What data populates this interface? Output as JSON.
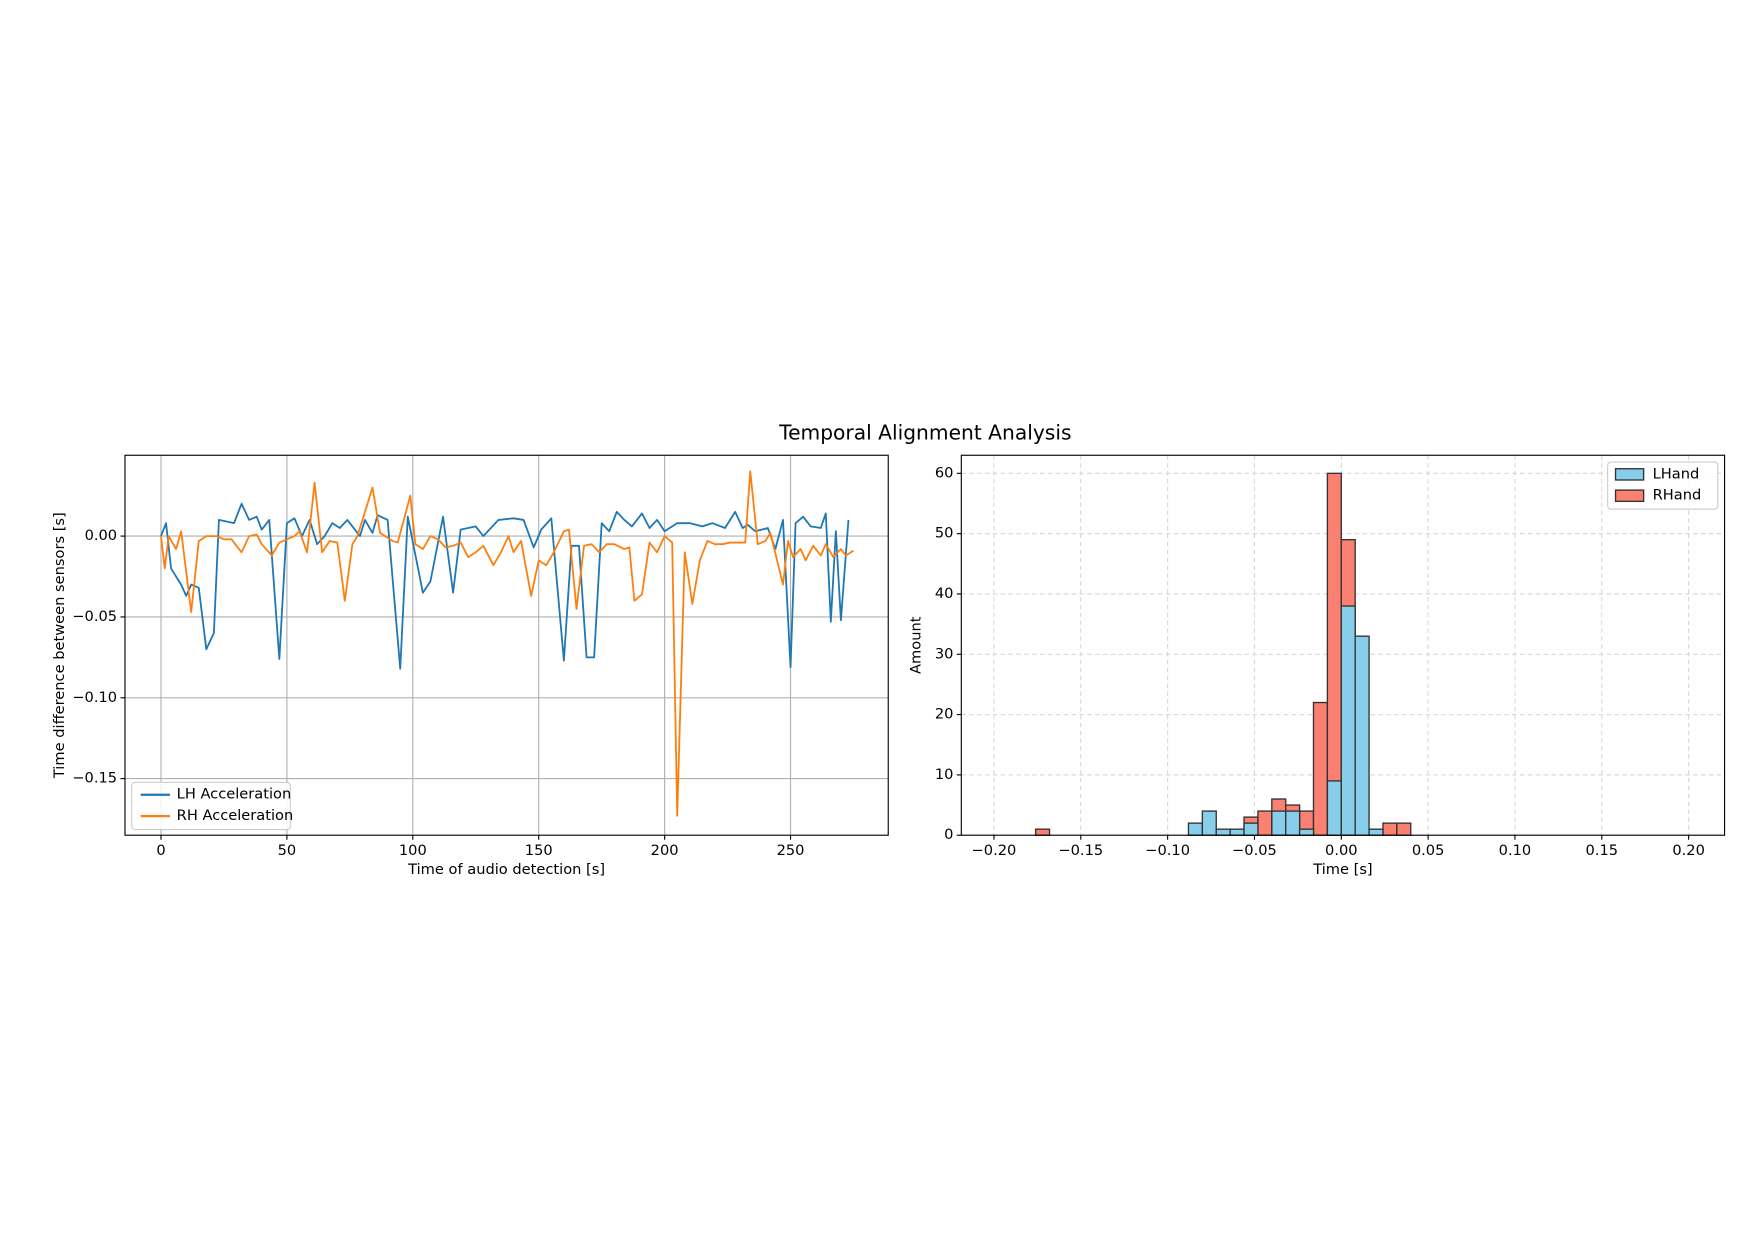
{
  "title": "Temporal Alignment Analysis",
  "chart_data": [
    {
      "type": "line",
      "xlabel": "Time of audio detection [s]",
      "ylabel": "Time difference between sensors [s]",
      "xlim": [
        -14.3,
        288.8
      ],
      "ylim": [
        -0.185,
        0.05
      ],
      "xticks": [
        0,
        50,
        100,
        150,
        200,
        250
      ],
      "yticks": [
        {
          "value": -0.15,
          "label": "−0.15"
        },
        {
          "value": -0.1,
          "label": "−0.10"
        },
        {
          "value": -0.05,
          "label": "−0.05"
        },
        {
          "value": 0,
          "label": "0.00"
        }
      ],
      "grid": true,
      "grid_linestyle": "solid",
      "legend": "lower left",
      "series": [
        {
          "name": "LH Acceleration",
          "color": "#1f77b4",
          "x": [
            0,
            2,
            4,
            8,
            10,
            12,
            15,
            18,
            21,
            23,
            29,
            32,
            35,
            38,
            40,
            43,
            47,
            50,
            53,
            56,
            59,
            62,
            65,
            68,
            71,
            74,
            79,
            81,
            84,
            86,
            90,
            95,
            98,
            104,
            107,
            112,
            116,
            119,
            125,
            128,
            134,
            140,
            144,
            148,
            151,
            155,
            160,
            163,
            166,
            169,
            172,
            175,
            178,
            181,
            184,
            187,
            191,
            194,
            197,
            200,
            205,
            210,
            215,
            219,
            224,
            228,
            231,
            233,
            236,
            241,
            244,
            247,
            250,
            252,
            255,
            258,
            262,
            264,
            266,
            268,
            270,
            273
          ],
          "values": [
            0,
            0.008,
            -0.02,
            -0.03,
            -0.037,
            -0.03,
            -0.032,
            -0.07,
            -0.06,
            0.01,
            0.008,
            0.02,
            0.01,
            0.012,
            0.004,
            0.01,
            -0.076,
            0.008,
            0.011,
            0,
            0.01,
            -0.005,
            0,
            0.008,
            0.005,
            0.01,
            0,
            0.01,
            0.002,
            0.013,
            0.01,
            -0.082,
            0.012,
            -0.035,
            -0.028,
            0.012,
            -0.035,
            0.004,
            0.006,
            0,
            0.01,
            0.011,
            0.01,
            -0.007,
            0.004,
            0.011,
            -0.077,
            -0.006,
            -0.006,
            -0.075,
            -0.075,
            0.008,
            0.003,
            0.015,
            0.01,
            0.006,
            0.014,
            0.005,
            0.01,
            0.003,
            0.008,
            0.008,
            0.006,
            0.008,
            0.005,
            0.015,
            0.005,
            0.007,
            0.003,
            0.005,
            -0.008,
            0.01,
            -0.081,
            0.008,
            0.012,
            0.006,
            0.005,
            0.014,
            -0.053,
            0.003,
            -0.052,
            0.01
          ]
        },
        {
          "name": "RH Acceleration",
          "color": "#ff7f0e",
          "x": [
            0,
            1.5,
            3,
            6,
            8,
            12,
            15,
            18,
            22,
            25,
            28,
            32,
            35,
            38,
            40,
            44,
            47,
            50,
            53,
            55,
            58,
            61,
            64,
            67,
            70,
            73,
            76,
            78,
            84,
            87,
            89,
            92,
            94,
            99,
            101,
            104,
            107,
            110,
            113,
            116,
            119,
            122,
            125,
            128,
            132,
            135,
            138,
            140,
            143,
            147,
            150,
            153,
            156,
            160,
            162,
            165,
            168,
            171,
            174,
            177,
            180,
            184,
            186,
            188,
            191,
            194,
            197,
            200,
            203,
            205,
            208,
            211,
            214,
            217,
            220,
            223,
            226,
            229,
            232,
            234,
            237,
            240,
            242,
            247,
            249,
            251,
            254,
            256,
            259,
            262,
            264,
            267,
            270,
            272,
            275
          ],
          "values": [
            0,
            -0.02,
            0,
            -0.008,
            0.003,
            -0.047,
            -0.003,
            0,
            0,
            -0.002,
            -0.002,
            -0.01,
            0,
            0.001,
            -0.005,
            -0.012,
            -0.004,
            -0.002,
            0,
            0.003,
            -0.01,
            0.033,
            -0.01,
            -0.003,
            -0.004,
            -0.04,
            -0.005,
            0,
            0.03,
            0.002,
            0,
            -0.003,
            -0.004,
            0.025,
            -0.005,
            -0.008,
            0,
            -0.002,
            -0.007,
            -0.006,
            -0.004,
            -0.013,
            -0.01,
            -0.006,
            -0.018,
            -0.01,
            0,
            -0.01,
            -0.003,
            -0.037,
            -0.015,
            -0.018,
            -0.01,
            0.003,
            0.004,
            -0.045,
            -0.006,
            -0.005,
            -0.01,
            -0.005,
            -0.005,
            -0.008,
            -0.007,
            -0.04,
            -0.036,
            -0.004,
            -0.01,
            0,
            -0.004,
            -0.173,
            -0.01,
            -0.042,
            -0.015,
            -0.003,
            -0.005,
            -0.005,
            -0.004,
            -0.004,
            -0.004,
            0.04,
            -0.005,
            -0.003,
            0.002,
            -0.03,
            -0.003,
            -0.013,
            -0.008,
            -0.015,
            -0.006,
            -0.012,
            -0.005,
            -0.013,
            -0.008,
            -0.012,
            -0.009
          ]
        }
      ]
    },
    {
      "type": "histogram",
      "xlabel": "Time [s]",
      "ylabel": "Amount",
      "xlim": [
        -0.2188,
        0.2207
      ],
      "ylim": [
        0,
        63
      ],
      "xticks": [
        {
          "value": -0.2,
          "label": "−0.20"
        },
        {
          "value": -0.15,
          "label": "−0.15"
        },
        {
          "value": -0.1,
          "label": "−0.10"
        },
        {
          "value": -0.05,
          "label": "−0.05"
        },
        {
          "value": 0,
          "label": "0.00"
        },
        {
          "value": 0.05,
          "label": "0.05"
        },
        {
          "value": 0.1,
          "label": "0.10"
        },
        {
          "value": 0.15,
          "label": "0.15"
        },
        {
          "value": 0.2,
          "label": "0.20"
        }
      ],
      "yticks": [
        0,
        10,
        20,
        30,
        40,
        50,
        60
      ],
      "grid": true,
      "grid_linestyle": "dashed",
      "legend": "upper right",
      "bins": [
        -0.2,
        -0.192,
        -0.184,
        -0.176,
        -0.168,
        -0.16,
        -0.152,
        -0.144,
        -0.136,
        -0.128,
        -0.12,
        -0.112,
        -0.104,
        -0.096,
        -0.088,
        -0.08,
        -0.072,
        -0.064,
        -0.056,
        -0.048,
        -0.04,
        -0.032,
        -0.024,
        -0.016,
        -0.008,
        0,
        0.008,
        0.016,
        0.024,
        0.032,
        0.04,
        0.048,
        0.056,
        0.064,
        0.072,
        0.08,
        0.088,
        0.096,
        0.104,
        0.112,
        0.12,
        0.128,
        0.136,
        0.144,
        0.152,
        0.16,
        0.168,
        0.176,
        0.184,
        0.192,
        0.2
      ],
      "series": [
        {
          "name": "LHand",
          "color": "#87ceeb",
          "values": [
            0,
            0,
            0,
            0,
            0,
            0,
            0,
            0,
            0,
            0,
            0,
            0,
            0,
            0,
            2,
            4,
            1,
            1,
            2,
            0,
            4,
            4,
            1,
            0,
            9,
            38,
            33,
            1,
            0,
            0,
            0,
            0,
            0,
            0,
            0,
            0,
            0,
            0,
            0,
            0,
            0,
            0,
            0,
            0,
            0,
            0,
            0,
            0,
            0,
            0
          ]
        },
        {
          "name": "RHand",
          "color": "#fa8072",
          "values": [
            0,
            0,
            0,
            1,
            0,
            0,
            0,
            0,
            0,
            0,
            0,
            0,
            0,
            0,
            0,
            0,
            0,
            0,
            3,
            4,
            6,
            5,
            4,
            22,
            60,
            49,
            0,
            0,
            2,
            2,
            0,
            0,
            0,
            0,
            0,
            0,
            0,
            0,
            0,
            0,
            0,
            0,
            0,
            0,
            0,
            0,
            0,
            0,
            0,
            0
          ]
        }
      ]
    }
  ]
}
